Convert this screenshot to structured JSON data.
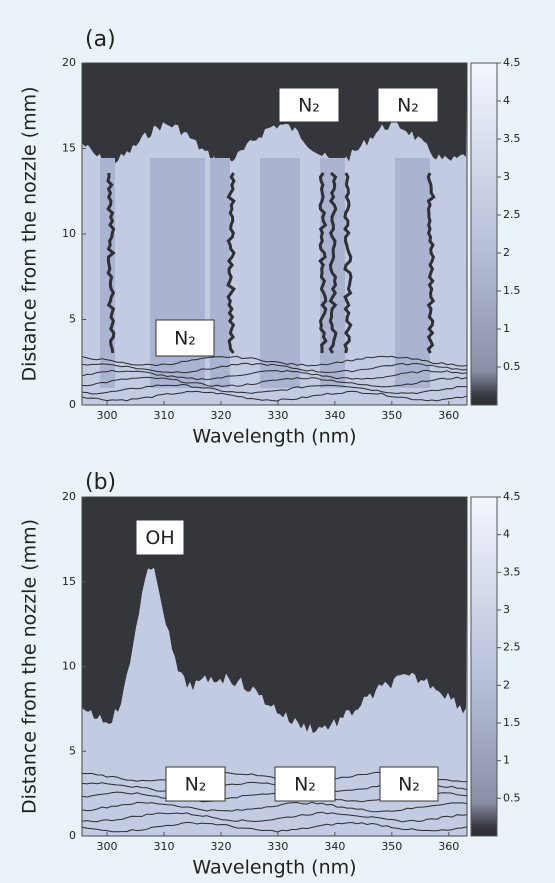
{
  "chart_data": [
    {
      "type": "contour",
      "panel_label": "(a)",
      "xlabel": "Wavelength   (nm)",
      "ylabel": "Distance from the nozzle   (mm)",
      "xlim": [
        295.6,
        363.2
      ],
      "xticks": [
        300,
        310,
        320,
        330,
        340,
        350,
        360
      ],
      "ylim": [
        0,
        20
      ],
      "yticks": [
        0,
        5,
        10,
        15,
        20
      ],
      "clim": [
        0,
        4.5
      ],
      "cticks": [
        0.5,
        1,
        1.5,
        2,
        2.5,
        3,
        3.5,
        4,
        4.5
      ],
      "annotations": [
        "N₂",
        "N₂",
        "N₂"
      ]
    },
    {
      "type": "contour",
      "panel_label": "(b)",
      "xlabel": "Wavelength   (nm)",
      "ylabel": "Distance from the nozzle   (mm)",
      "xlim": [
        295.6,
        363.2
      ],
      "xticks": [
        300,
        310,
        320,
        330,
        340,
        350,
        360
      ],
      "ylim": [
        0,
        20
      ],
      "yticks": [
        0,
        5,
        10,
        15,
        20
      ],
      "clim": [
        0,
        4.5
      ],
      "cticks": [
        0.5,
        1,
        1.5,
        2,
        2.5,
        3,
        3.5,
        4,
        4.5
      ],
      "annotations": [
        "OH",
        "N₂",
        "N₂",
        "N₂"
      ]
    }
  ]
}
